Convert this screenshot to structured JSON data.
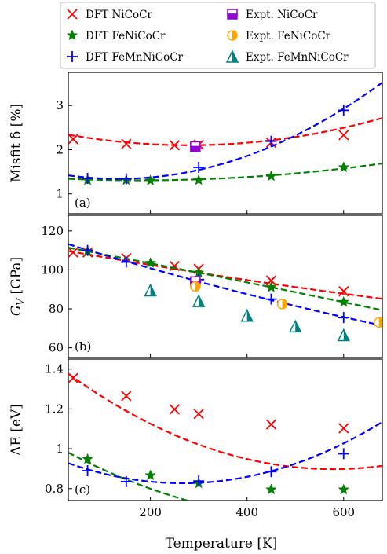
{
  "chart_data": {
    "type": "scatter",
    "xlabel": "Temperature [K]",
    "xlim": [
      30,
      680
    ],
    "xticks": [
      200,
      400,
      600
    ],
    "legend": {
      "placement": "top",
      "entries": [
        {
          "label": "DFT NiCoCr",
          "marker": "x",
          "color": "#ff0000"
        },
        {
          "label": "Expt. NiCoCr",
          "marker": "square-half",
          "color": "#9400d3"
        },
        {
          "label": "DFT FeNiCoCr",
          "marker": "star",
          "color": "#008000"
        },
        {
          "label": "Expt. FeNiCoCr",
          "marker": "circle-half",
          "color": "#ffa500"
        },
        {
          "label": "DFT FeMnNiCoCr",
          "marker": "plus",
          "color": "#0000ff"
        },
        {
          "label": "Expt. FeMnNiCoCr",
          "marker": "triangle-half",
          "color": "#008080"
        }
      ]
    },
    "panels": [
      {
        "tag": "(a)",
        "ylabel": "Misfit δ [%]",
        "ylim": [
          0.55,
          3.75
        ],
        "yticks": [
          1,
          2,
          3
        ],
        "series": [
          {
            "name": "DFT NiCoCr",
            "color": "#ff0000",
            "marker": "x",
            "points": [
              [
                40,
                2.24
              ],
              [
                150,
                2.13
              ],
              [
                250,
                2.1
              ],
              [
                300,
                2.11
              ],
              [
                450,
                2.16
              ],
              [
                600,
                2.33
              ]
            ],
            "fit": [
              3.83e-06,
              -0.00214,
              2.4
            ]
          },
          {
            "name": "DFT FeNiCoCr",
            "color": "#008000",
            "marker": "star",
            "points": [
              [
                70,
                1.31
              ],
              [
                150,
                1.31
              ],
              [
                200,
                1.3
              ],
              [
                300,
                1.31
              ],
              [
                450,
                1.4
              ],
              [
                600,
                1.6
              ]
            ],
            "fit": [
              1.52e-06,
              -0.000545,
              1.355
            ]
          },
          {
            "name": "DFT FeMnNiCoCr",
            "color": "#0000ff",
            "marker": "plus",
            "points": [
              [
                70,
                1.35
              ],
              [
                150,
                1.34
              ],
              [
                300,
                1.6
              ],
              [
                450,
                2.19
              ],
              [
                600,
                2.89
              ]
            ],
            "fit": [
              7.3e-06,
              -0.00195,
              1.47
            ]
          },
          {
            "name": "Expt. NiCoCr",
            "color": "#9400d3",
            "marker": "square-half",
            "points": [
              [
                293,
                2.07
              ]
            ]
          }
        ]
      },
      {
        "tag": "(b)",
        "ylabel": "G_V [GPa]",
        "ylim": [
          55,
          128
        ],
        "yticks": [
          60,
          80,
          100,
          120
        ],
        "series": [
          {
            "name": "DFT NiCoCr",
            "color": "#ff0000",
            "marker": "x",
            "points": [
              [
                40,
                109
              ],
              [
                70,
                109
              ],
              [
                150,
                106
              ],
              [
                250,
                102
              ],
              [
                300,
                100.5
              ],
              [
                450,
                94.5
              ],
              [
                600,
                89
              ]
            ],
            "fit": [
              9.1e-06,
              -0.0442,
              111.0
            ]
          },
          {
            "name": "DFT FeNiCoCr",
            "color": "#008000",
            "marker": "star",
            "points": [
              [
                70,
                109.5
              ],
              [
                200,
                103.5
              ],
              [
                300,
                98.5
              ],
              [
                450,
                91
              ],
              [
                600,
                83.5
              ]
            ],
            "fit": [
              -4.4e-06,
              -0.0463,
              112.8
            ]
          },
          {
            "name": "DFT FeMnNiCoCr",
            "color": "#0000ff",
            "marker": "plus",
            "points": [
              [
                70,
                110
              ],
              [
                150,
                104
              ],
              [
                300,
                95
              ],
              [
                450,
                85
              ],
              [
                600,
                75.5
              ]
            ],
            "fit": [
              1.81e-05,
              -0.0771,
              115.5
            ]
          },
          {
            "name": "Expt. NiCoCr",
            "color": "#9400d3",
            "marker": "square-half",
            "points": [
              [
                293,
                94
              ]
            ]
          },
          {
            "name": "Expt. FeNiCoCr",
            "color": "#ffa500",
            "marker": "circle-half",
            "points": [
              [
                293,
                91.5
              ],
              [
                473,
                82.5
              ],
              [
                673,
                73
              ]
            ]
          },
          {
            "name": "Expt. FeMnNiCoCr",
            "color": "#008080",
            "marker": "triangle-half",
            "points": [
              [
                200,
                89.5
              ],
              [
                300,
                84
              ],
              [
                400,
                76.5
              ],
              [
                500,
                71
              ],
              [
                600,
                66.5
              ]
            ]
          }
        ]
      },
      {
        "tag": "(c)",
        "ylabel": "ΔE [eV]",
        "ylim": [
          0.74,
          1.45
        ],
        "yticks": [
          0.8,
          1.0,
          1.2,
          1.4
        ],
        "series": [
          {
            "name": "DFT NiCoCr",
            "color": "#ff0000",
            "marker": "x",
            "points": [
              [
                40,
                1.355
              ],
              [
                150,
                1.265
              ],
              [
                250,
                1.198
              ],
              [
                300,
                1.175
              ],
              [
                450,
                1.122
              ],
              [
                600,
                1.103
              ]
            ],
            "fit": [
              1.59e-06,
              -0.00184,
              1.43
            ]
          },
          {
            "name": "DFT FeNiCoCr",
            "color": "#008000",
            "marker": "star",
            "points": [
              [
                70,
                0.948
              ],
              [
                200,
                0.866
              ],
              [
                300,
                0.826
              ],
              [
                450,
                0.795
              ],
              [
                600,
                0.795
              ]
            ],
            "fit": [
              1.19e-06,
              -0.00134,
              1.02
            ]
          },
          {
            "name": "DFT FeMnNiCoCr",
            "color": "#0000ff",
            "marker": "plus",
            "points": [
              [
                70,
                0.89
              ],
              [
                150,
                0.835
              ],
              [
                300,
                0.838
              ],
              [
                450,
                0.885
              ],
              [
                600,
                0.975
              ]
            ],
            "fit": [
              1.8e-06,
              -0.00096,
              0.955
            ]
          }
        ]
      }
    ]
  }
}
